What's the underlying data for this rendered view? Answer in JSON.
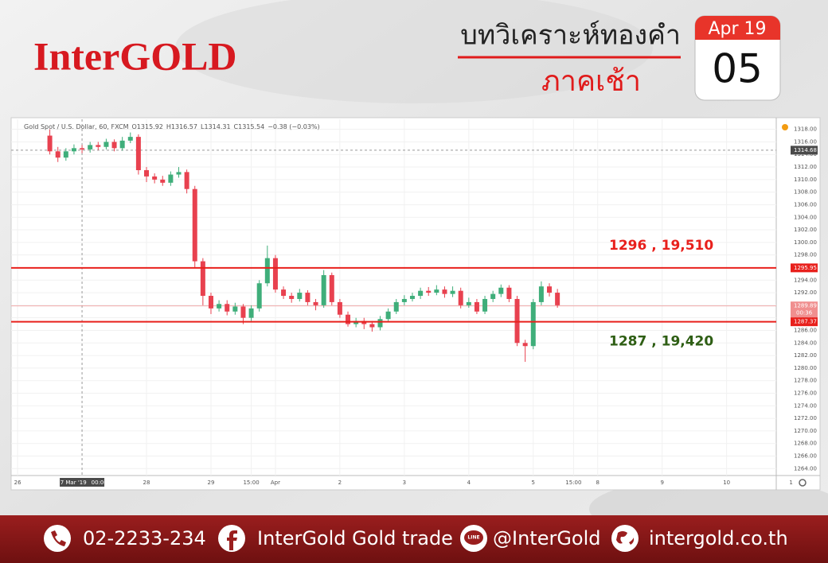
{
  "header": {
    "logo": "InterGOLD",
    "title": "บทวิเคราะห์ทองคำ",
    "subtitle": "ภาคเช้า",
    "calendar": {
      "month": "Apr 19",
      "day": "05"
    }
  },
  "chart_data": {
    "type": "candlestick",
    "title": "Gold Spot / U.S. Dollar, 60, FXCM",
    "legend_values": [
      "O1315.92",
      "H1316.57",
      "L1314.31",
      "C1315.54",
      "−0.38 (−0.03%)"
    ],
    "x": [
      0.5,
      0.625,
      0.75,
      0.875,
      1.0,
      1.125,
      1.25,
      1.375,
      1.5,
      1.625,
      1.75,
      1.875,
      2.0,
      2.125,
      2.25,
      2.375,
      2.5,
      2.625,
      2.75,
      2.875,
      3.0,
      3.125,
      3.25,
      3.375,
      3.5,
      3.625,
      3.75,
      3.875,
      4.0,
      4.125,
      4.25,
      4.375,
      4.5,
      4.625,
      4.75,
      4.875,
      5.0,
      5.125,
      5.25,
      5.375,
      5.5,
      5.625,
      5.75,
      5.875,
      6.0,
      6.125,
      6.25,
      6.375,
      6.5,
      6.625,
      6.75,
      6.875,
      7.0,
      7.125,
      7.25,
      7.375,
      7.5,
      7.625,
      7.75,
      7.875,
      8.0,
      8.125,
      8.25,
      8.375
    ],
    "open": [
      1317.0,
      1314.5,
      1313.5,
      1314.5,
      1315.0,
      1314.8,
      1315.5,
      1315.2,
      1316.0,
      1315.0,
      1316.2,
      1316.8,
      1311.5,
      1310.5,
      1310.0,
      1309.5,
      1310.8,
      1311.2,
      1308.5,
      1297.0,
      1291.5,
      1289.5,
      1290.2,
      1289.0,
      1289.8,
      1288.0,
      1289.5,
      1293.5,
      1297.5,
      1292.5,
      1291.5,
      1291.0,
      1292.0,
      1290.5,
      1290.0,
      1294.8,
      1290.5,
      1288.5,
      1287.0,
      1287.5,
      1287.0,
      1286.5,
      1287.8,
      1289.0,
      1290.5,
      1291.0,
      1291.5,
      1292.3,
      1292.0,
      1292.5,
      1291.8,
      1292.3,
      1290.0,
      1290.5,
      1289.0,
      1291.0,
      1291.8,
      1292.8,
      1291.0,
      1284.0,
      1283.5,
      1290.5,
      1293.0,
      1292.0
    ],
    "high": [
      1318.0,
      1315.2,
      1315.0,
      1315.6,
      1315.5,
      1316.0,
      1316.0,
      1316.5,
      1316.4,
      1316.8,
      1317.5,
      1317.2,
      1312.0,
      1311.0,
      1310.6,
      1311.3,
      1312.0,
      1311.6,
      1309.0,
      1297.5,
      1292.0,
      1290.8,
      1290.8,
      1290.4,
      1290.2,
      1290.0,
      1294.0,
      1299.5,
      1298.0,
      1293.0,
      1292.0,
      1292.6,
      1292.4,
      1291.0,
      1295.6,
      1295.2,
      1291.0,
      1289.0,
      1288.0,
      1288.0,
      1287.5,
      1288.3,
      1289.5,
      1291.0,
      1291.6,
      1292.0,
      1292.8,
      1292.9,
      1293.2,
      1293.0,
      1293.0,
      1292.8,
      1291.2,
      1291.0,
      1291.5,
      1292.3,
      1293.3,
      1293.2,
      1291.5,
      1284.5,
      1291.0,
      1293.8,
      1293.5,
      1292.6
    ],
    "low": [
      1314.0,
      1312.8,
      1313.0,
      1314.0,
      1314.2,
      1314.3,
      1314.7,
      1314.8,
      1314.5,
      1314.6,
      1315.8,
      1310.8,
      1309.6,
      1309.4,
      1309.0,
      1309.0,
      1310.3,
      1307.8,
      1296.0,
      1290.0,
      1288.6,
      1289.0,
      1288.4,
      1288.5,
      1287.0,
      1287.5,
      1289.0,
      1293.0,
      1292.0,
      1291.0,
      1290.4,
      1290.6,
      1290.0,
      1289.2,
      1289.6,
      1290.0,
      1288.0,
      1286.6,
      1286.5,
      1286.2,
      1285.8,
      1286.0,
      1287.3,
      1288.6,
      1290.0,
      1290.6,
      1291.0,
      1291.5,
      1291.6,
      1291.2,
      1291.3,
      1289.5,
      1289.6,
      1288.6,
      1288.6,
      1290.5,
      1291.3,
      1290.5,
      1283.5,
      1281.0,
      1283.0,
      1290.0,
      1291.4,
      1289.6
    ],
    "close": [
      1314.5,
      1313.5,
      1314.5,
      1315.0,
      1314.8,
      1315.5,
      1315.2,
      1316.0,
      1315.0,
      1316.2,
      1316.8,
      1311.5,
      1310.5,
      1310.0,
      1309.5,
      1310.8,
      1311.2,
      1308.5,
      1297.0,
      1291.5,
      1289.5,
      1290.2,
      1289.0,
      1289.8,
      1288.0,
      1289.5,
      1293.5,
      1297.5,
      1292.5,
      1291.5,
      1291.0,
      1292.0,
      1290.5,
      1290.0,
      1294.8,
      1290.5,
      1288.5,
      1287.0,
      1287.5,
      1287.0,
      1286.5,
      1287.8,
      1289.0,
      1290.5,
      1291.0,
      1291.5,
      1292.3,
      1292.0,
      1292.5,
      1291.8,
      1292.3,
      1290.0,
      1290.5,
      1289.0,
      1291.0,
      1291.8,
      1292.8,
      1291.0,
      1284.0,
      1283.5,
      1290.5,
      1293.0,
      1292.0,
      1290.0
    ],
    "up_color": "#3fae7a",
    "down_color": "#e8414f",
    "xlim": [
      -0.1,
      11.77
    ],
    "xticks": [
      {
        "value": 0,
        "label": "26"
      },
      {
        "value": 2,
        "label": "28"
      },
      {
        "value": 3,
        "label": "29"
      },
      {
        "value": 3.625,
        "label": "15:00"
      },
      {
        "value": 4,
        "label": "Apr"
      },
      {
        "value": 5,
        "label": "2"
      },
      {
        "value": 6,
        "label": "3"
      },
      {
        "value": 7,
        "label": "4"
      },
      {
        "value": 8,
        "label": "5"
      },
      {
        "value": 8.625,
        "label": "15:00"
      },
      {
        "value": 9,
        "label": "8"
      },
      {
        "value": 10,
        "label": "9"
      },
      {
        "value": 11,
        "label": "10"
      },
      {
        "value": 12,
        "label": "1"
      }
    ],
    "ylim": [
      1262.9,
      1319.6
    ],
    "yticks": [
      {
        "value": 1264,
        "label": "1264.00"
      },
      {
        "value": 1266,
        "label": "1266.00"
      },
      {
        "value": 1268,
        "label": "1268.00"
      },
      {
        "value": 1270,
        "label": "1270.00"
      },
      {
        "value": 1272,
        "label": "1272.00"
      },
      {
        "value": 1274,
        "label": "1274.00"
      },
      {
        "value": 1276,
        "label": "1276.00"
      },
      {
        "value": 1278,
        "label": "1278.00"
      },
      {
        "value": 1280,
        "label": "1280.00"
      },
      {
        "value": 1282,
        "label": "1282.00"
      },
      {
        "value": 1284,
        "label": "1284.00"
      },
      {
        "value": 1286,
        "label": "1286.00"
      },
      {
        "value": 1288,
        "label": "1288.00"
      },
      {
        "value": 1290,
        "label": "1290.00"
      },
      {
        "value": 1292,
        "label": "1292.00"
      },
      {
        "value": 1294,
        "label": "1294.00"
      },
      {
        "value": 1296,
        "label": "1296.00"
      },
      {
        "value": 1298,
        "label": "1298.00"
      },
      {
        "value": 1300,
        "label": "1300.00"
      },
      {
        "value": 1302,
        "label": "1302.00"
      },
      {
        "value": 1304,
        "label": "1304.00"
      },
      {
        "value": 1306,
        "label": "1306.00"
      },
      {
        "value": 1308,
        "label": "1308.00"
      },
      {
        "value": 1310,
        "label": "1310.00"
      },
      {
        "value": 1312,
        "label": "1312.00"
      },
      {
        "value": 1314,
        "label": "1314.00"
      },
      {
        "value": 1316,
        "label": "1316.00"
      },
      {
        "value": 1318,
        "label": "1318.00"
      }
    ],
    "grid": true,
    "levels": [
      {
        "value": 1295.95,
        "label": "1295.95",
        "color": "#e8201c",
        "annotation": "1296 , 19,510",
        "annotation_color": "#e8201c"
      },
      {
        "value": 1287.37,
        "label": "1287.37",
        "color": "#e8201c",
        "annotation": "1287 , 19,420",
        "annotation_color": "#2e5e14"
      }
    ],
    "last_price": {
      "value": 1289.89,
      "label": "1289.89",
      "countdown": "00:36",
      "color": "#f08f8f"
    },
    "crosshair": {
      "x": 1,
      "x_label": "27 Mar '19",
      "x_time": "00:00",
      "y": 1314.68,
      "y_label": "1314.68"
    }
  },
  "footer": {
    "phone": "02-2233-234",
    "facebook": "InterGold Gold trade",
    "line_badge": "LINE",
    "line": "@InterGold",
    "website": "intergold.co.th"
  }
}
